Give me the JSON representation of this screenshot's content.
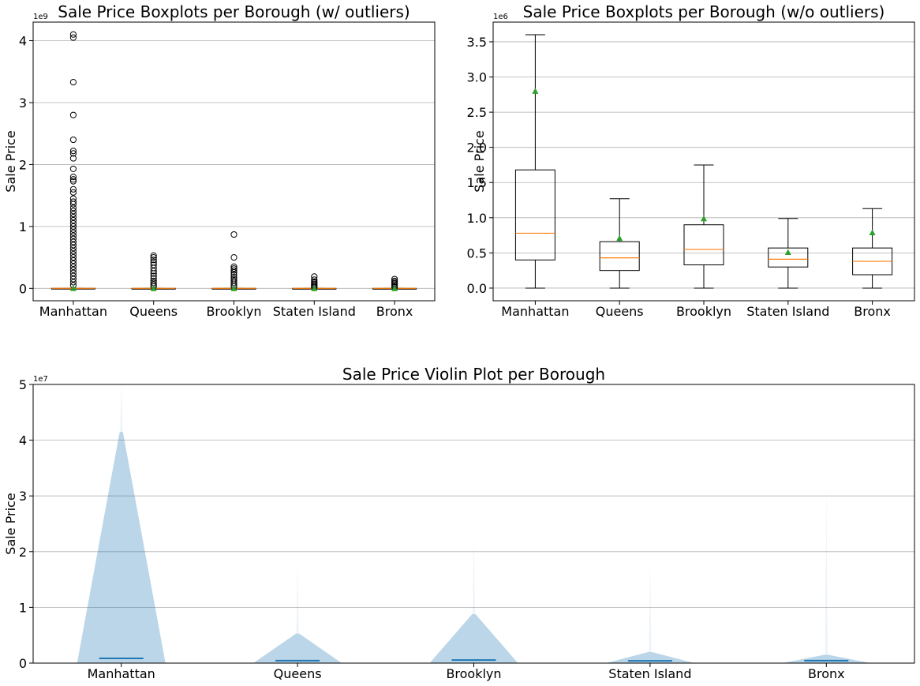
{
  "chart_data": [
    {
      "type": "boxplot",
      "title": "Sale Price Boxplots per Borough (w/ outliers)",
      "ylabel": "Sale Price",
      "y_multiplier": "1e9",
      "ylim": [
        -0.2,
        4.3
      ],
      "yticks": [
        0,
        1,
        2,
        3,
        4
      ],
      "grid": "y",
      "categories": [
        "Manhattan",
        "Queens",
        "Brooklyn",
        "Staten Island",
        "Bronx"
      ],
      "boxes": [
        {
          "q1": 0.0004,
          "median": 0.0008,
          "q3": 0.0017,
          "whisker_low": 0,
          "whisker_high": 0.0036,
          "mean": 0.0028,
          "outliers": [
            4.1,
            4.05,
            3.33,
            2.8,
            2.4,
            2.22,
            2.18,
            2.1,
            1.93,
            1.8,
            1.76,
            1.73,
            1.6,
            1.55,
            1.45,
            1.4,
            1.36,
            1.3,
            1.25,
            1.2,
            1.15,
            1.1,
            1.05,
            1.0,
            0.95,
            0.9,
            0.85,
            0.8,
            0.75,
            0.7,
            0.65,
            0.6,
            0.55,
            0.5,
            0.45,
            0.4,
            0.35,
            0.3,
            0.25,
            0.2,
            0.15,
            0.1,
            0.05
          ]
        },
        {
          "q1": 0.00025,
          "median": 0.00043,
          "q3": 0.00066,
          "whisker_low": 0,
          "whisker_high": 0.00127,
          "mean": 0.00071,
          "outliers": [
            0.53,
            0.5,
            0.46,
            0.42,
            0.38,
            0.33,
            0.28,
            0.24,
            0.2,
            0.16,
            0.12,
            0.09,
            0.06,
            0.03
          ]
        },
        {
          "q1": 0.00033,
          "median": 0.00055,
          "q3": 0.0009,
          "whisker_low": 0,
          "whisker_high": 0.00175,
          "mean": 0.00099,
          "outliers": [
            0.87,
            0.5,
            0.35,
            0.32,
            0.29,
            0.26,
            0.22,
            0.18,
            0.15,
            0.12,
            0.09,
            0.06,
            0.03
          ]
        },
        {
          "q1": 0.0003,
          "median": 0.00041,
          "q3": 0.00057,
          "whisker_low": 0,
          "whisker_high": 0.00099,
          "mean": 0.00051,
          "outliers": [
            0.19,
            0.14,
            0.11,
            0.09,
            0.07,
            0.05,
            0.03,
            0.02
          ]
        },
        {
          "q1": 0.00019,
          "median": 0.00038,
          "q3": 0.00057,
          "whisker_low": 0,
          "whisker_high": 0.00113,
          "mean": 0.00079,
          "outliers": [
            0.15,
            0.12,
            0.1,
            0.08,
            0.06,
            0.04,
            0.02
          ]
        }
      ]
    },
    {
      "type": "boxplot",
      "title": "Sale Price Boxplots per Borough (w/o outliers)",
      "ylabel": "Sale Price",
      "y_multiplier": "1e6",
      "ylim": [
        -0.18,
        3.78
      ],
      "yticks": [
        "0.0",
        "0.5",
        "1.0",
        "1.5",
        "2.0",
        "2.5",
        "3.0",
        "3.5"
      ],
      "grid": "y",
      "categories": [
        "Manhattan",
        "Queens",
        "Brooklyn",
        "Staten Island",
        "Bronx"
      ],
      "boxes": [
        {
          "q1": 0.4,
          "median": 0.78,
          "q3": 1.68,
          "whisker_low": 0,
          "whisker_high": 3.6,
          "mean": 2.8
        },
        {
          "q1": 0.25,
          "median": 0.43,
          "q3": 0.66,
          "whisker_low": 0,
          "whisker_high": 1.27,
          "mean": 0.71
        },
        {
          "q1": 0.33,
          "median": 0.55,
          "q3": 0.9,
          "whisker_low": 0,
          "whisker_high": 1.75,
          "mean": 0.99
        },
        {
          "q1": 0.3,
          "median": 0.41,
          "q3": 0.57,
          "whisker_low": 0,
          "whisker_high": 0.99,
          "mean": 0.51
        },
        {
          "q1": 0.19,
          "median": 0.38,
          "q3": 0.57,
          "whisker_low": 0,
          "whisker_high": 1.13,
          "mean": 0.79
        }
      ]
    },
    {
      "type": "violin",
      "title": "Sale Price Violin Plot per Borough",
      "ylabel": "Sale Price",
      "y_multiplier": "1e7",
      "ylim": [
        0,
        5
      ],
      "yticks": [
        0,
        1,
        2,
        3,
        4,
        5
      ],
      "grid": "y",
      "categories": [
        "Manhattan",
        "Queens",
        "Brooklyn",
        "Staten Island",
        "Bronx"
      ],
      "violins": [
        {
          "peak": 4.15,
          "tail_max": 5.0,
          "median": 0.085
        },
        {
          "peak": 0.53,
          "tail_max": 1.8,
          "median": 0.045
        },
        {
          "peak": 0.88,
          "tail_max": 2.3,
          "median": 0.055
        },
        {
          "peak": 0.2,
          "tail_max": 1.9,
          "median": 0.04
        },
        {
          "peak": 0.15,
          "tail_max": 3.2,
          "median": 0.045
        }
      ]
    }
  ]
}
